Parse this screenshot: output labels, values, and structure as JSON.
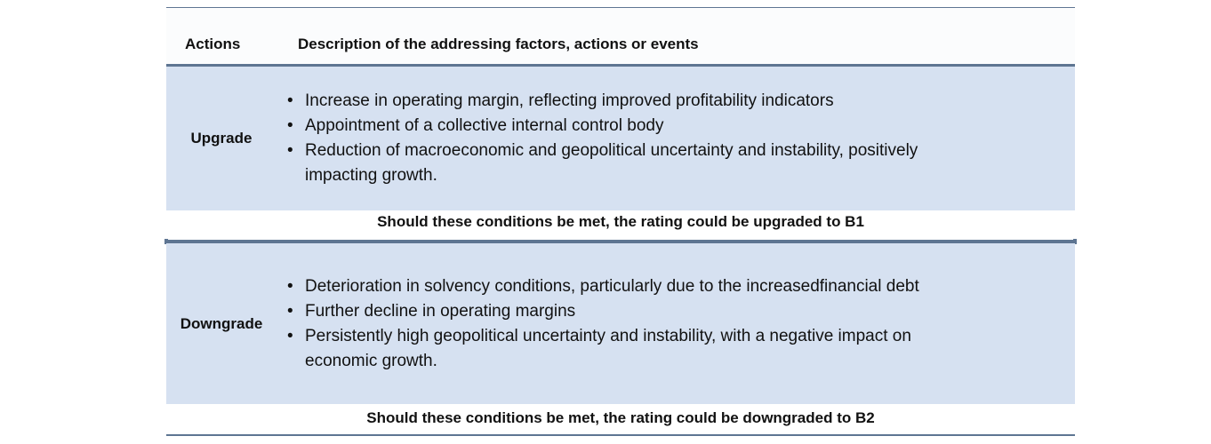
{
  "header": {
    "actions_label": "Actions",
    "description_label": "Description of the addressing factors, actions or events"
  },
  "sections": [
    {
      "action": "Upgrade",
      "factors": [
        "Increase in operating margin, reflecting  improved profitability indicators",
        "Appointment of a collective internal control body",
        "Reduction of macroeconomic and geopolitical uncertainty and instability, positively impacting growth."
      ],
      "condition": "Should these conditions be met, the rating could be upgraded to B1"
    },
    {
      "action": "Downgrade",
      "factors": [
        "Deterioration in solvency conditions, particularly due to the increasedfinancial debt",
        "Further decline in operating margins",
        "Persistently high geopolitical uncertainty and instability, with a negative impact on economic growth."
      ],
      "condition": "Should these conditions be met, the rating could be downgraded to B2"
    }
  ],
  "colors": {
    "band": "#d6e1f1",
    "rule": "#5e7592",
    "header_bg": "#fbfcfd"
  },
  "icons": {
    "bullet": "bullet-dot"
  }
}
